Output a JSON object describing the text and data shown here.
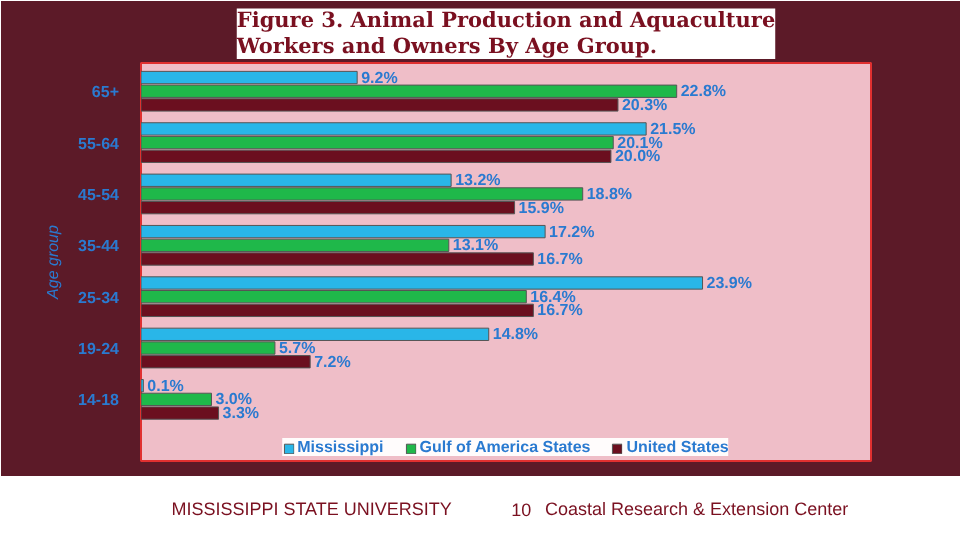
{
  "chart_data": {
    "type": "bar",
    "orientation": "horizontal",
    "title": "Figure 3. Animal Production and Aquaculture Workers and Owners By Age Group.",
    "ylabel": "Age group",
    "categories": [
      "65+",
      "55-64",
      "45-54",
      "35-44",
      "25-34",
      "19-24",
      "14-18"
    ],
    "series": [
      {
        "name": "Mississippi",
        "color": "#29b6e8",
        "values": [
          9.2,
          21.5,
          13.2,
          17.2,
          23.9,
          14.8,
          0.1
        ],
        "value_labels": [
          "9.2%",
          "21.5%",
          "13.2%",
          "17.2%",
          "23.9%",
          "14.8%",
          "0.1%"
        ]
      },
      {
        "name": "Gulf of America States",
        "color": "#1fb84a",
        "values": [
          22.8,
          20.1,
          18.8,
          13.1,
          16.4,
          5.7,
          3.0
        ],
        "value_labels": [
          "22.8%",
          "20.1%",
          "18.8%",
          "13.1%",
          "16.4%",
          "5.7%",
          "3.0%"
        ]
      },
      {
        "name": "United States",
        "color": "#6b0f1f",
        "values": [
          20.3,
          20.0,
          15.9,
          16.7,
          16.7,
          7.2,
          3.3
        ],
        "value_labels": [
          "20.3%",
          "20.0%",
          "15.9%",
          "16.7%",
          "16.7%",
          "7.2%",
          "3.3%"
        ]
      }
    ],
    "legend": "bottom",
    "grid": false,
    "annotations": [
      "MISSISSIPPI STATE UNIVERSITY",
      "10",
      "Coastal Research & Extension Center"
    ]
  }
}
